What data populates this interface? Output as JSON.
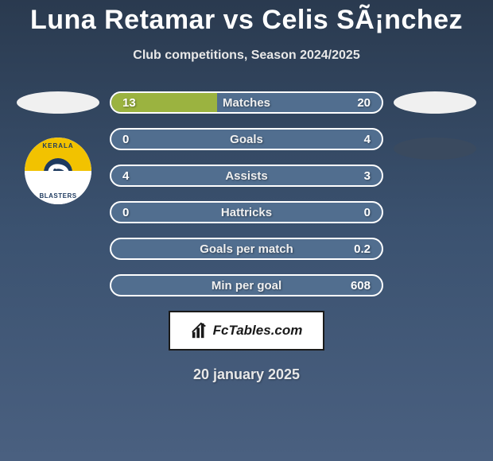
{
  "title": "Luna Retamar vs Celis SÃ¡nchez",
  "subtitle": "Club competitions, Season 2024/2025",
  "date": "20 january 2025",
  "footer_label": "FcTables.com",
  "colors": {
    "bar_fill": "#9bb340",
    "bar_bg": "#516e8f",
    "bar_border": "#ffffff",
    "badge_yellow": "#f2c200",
    "badge_blue": "#1e3a5f"
  },
  "badge": {
    "top_text": "KERALA",
    "bottom_text": "BLASTERS"
  },
  "rows": [
    {
      "label": "Matches",
      "left": "13",
      "right": "20",
      "left_pct": 39,
      "right_pct": 0
    },
    {
      "label": "Goals",
      "left": "0",
      "right": "4",
      "left_pct": 0,
      "right_pct": 0
    },
    {
      "label": "Assists",
      "left": "4",
      "right": "3",
      "left_pct": 0,
      "right_pct": 0
    },
    {
      "label": "Hattricks",
      "left": "0",
      "right": "0",
      "left_pct": 0,
      "right_pct": 0
    },
    {
      "label": "Goals per match",
      "left": "",
      "right": "0.2",
      "left_pct": 0,
      "right_pct": 0
    },
    {
      "label": "Min per goal",
      "left": "",
      "right": "608",
      "left_pct": 0,
      "right_pct": 0
    }
  ]
}
